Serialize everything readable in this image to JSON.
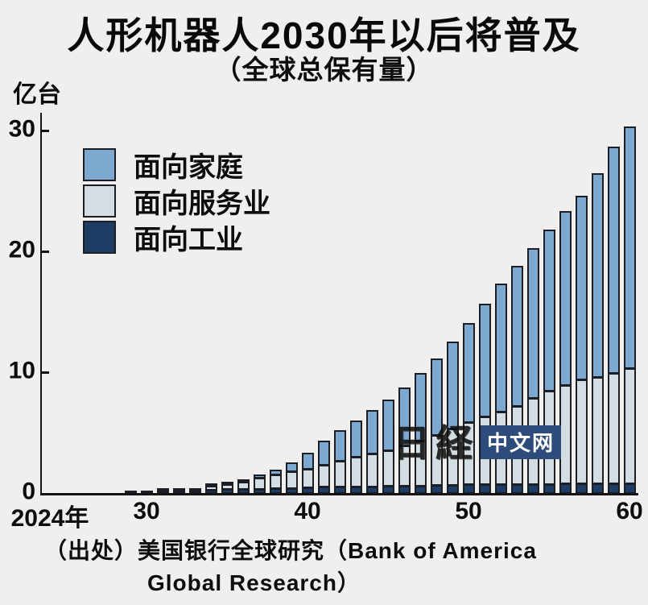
{
  "title": "人形机器人2030年以后将普及",
  "subtitle": "（全球总保有量）",
  "unit_label": "亿台",
  "watermark": {
    "brand": "日経",
    "badge": "中文网"
  },
  "source": {
    "line1": "（出处）美国银行全球研究（Bank of America",
    "line2": "Global Research）"
  },
  "colors": {
    "background": "#f0efed",
    "household": "#7dа9d0",
    "household_fix": "#7da9d0",
    "services": "#d4dde2",
    "industry": "#1f3c64",
    "bar_outline": "#1b1e24",
    "axis": "#141414",
    "watermark_badge": "#2d4c7c",
    "text": "#0d0d0d"
  },
  "legend_items": [
    {
      "label": "面向家庭",
      "color": "#7da9d0"
    },
    {
      "label": "面向服务业",
      "color": "#d4dde2"
    },
    {
      "label": "面向工业",
      "color": "#1f3c64"
    }
  ],
  "chart_data": {
    "type": "bar",
    "stacked": true,
    "title": "人形机器人2030年以后将普及",
    "subtitle": "（全球总保有量）",
    "ylabel": "亿台",
    "ylim": [
      0,
      31.5
    ],
    "y_ticks": [
      0,
      10,
      20,
      30
    ],
    "grid": false,
    "legend_position": "upper-left",
    "years": [
      2024,
      2025,
      2026,
      2027,
      2028,
      2029,
      2030,
      2031,
      2032,
      2033,
      2034,
      2035,
      2036,
      2037,
      2038,
      2039,
      2040,
      2041,
      2042,
      2043,
      2044,
      2045,
      2046,
      2047,
      2048,
      2049,
      2050,
      2051,
      2052,
      2053,
      2054,
      2055,
      2056,
      2057,
      2058,
      2059,
      2060
    ],
    "x_tick_labels": [
      {
        "year": 2024,
        "label": "2024年"
      },
      {
        "year": 2030,
        "label": "30"
      },
      {
        "year": 2040,
        "label": "40"
      },
      {
        "year": 2050,
        "label": "50"
      },
      {
        "year": 2060,
        "label": "60"
      }
    ],
    "series": [
      {
        "name": "面向工业",
        "color": "#1f3c64",
        "values": [
          0.005,
          0.008,
          0.01,
          0.015,
          0.03,
          0.05,
          0.08,
          0.12,
          0.18,
          0.22,
          0.25,
          0.3,
          0.32,
          0.35,
          0.38,
          0.4,
          0.45,
          0.5,
          0.5,
          0.55,
          0.55,
          0.6,
          0.6,
          0.6,
          0.65,
          0.65,
          0.7,
          0.7,
          0.7,
          0.75,
          0.75,
          0.75,
          0.8,
          0.8,
          0.8,
          0.8,
          0.8
        ]
      },
      {
        "name": "面向服务业",
        "color": "#d4dde2",
        "values": [
          0,
          0,
          0,
          0.005,
          0.01,
          0.02,
          0.02,
          0.04,
          0.1,
          0.18,
          0.3,
          0.42,
          0.63,
          0.9,
          1.12,
          1.4,
          1.55,
          1.8,
          2.1,
          2.45,
          2.75,
          2.9,
          3.3,
          3.7,
          4.15,
          4.65,
          5.1,
          5.6,
          6.0,
          6.45,
          7.15,
          7.75,
          8.1,
          8.6,
          8.8,
          9.1,
          9.5
        ]
      },
      {
        "name": "面向家庭",
        "color": "#7da9d0",
        "values": [
          0,
          0,
          0,
          0,
          0,
          0,
          0,
          0,
          0,
          0,
          0.05,
          0.08,
          0.15,
          0.25,
          0.4,
          0.7,
          1.3,
          2.0,
          2.5,
          3.0,
          3.6,
          4.2,
          4.8,
          5.6,
          6.3,
          7.2,
          8.2,
          9.3,
          10.6,
          11.6,
          12.4,
          13.3,
          14.4,
          15.2,
          16.9,
          18.7,
          20.0
        ]
      }
    ],
    "totals": [
      0.005,
      0.008,
      0.01,
      0.02,
      0.04,
      0.07,
      0.1,
      0.16,
      0.28,
      0.4,
      0.6,
      0.8,
      1.1,
      1.5,
      1.9,
      2.5,
      3.3,
      4.3,
      5.1,
      6.0,
      6.9,
      7.7,
      8.7,
      9.9,
      11.1,
      12.5,
      14.0,
      15.6,
      17.3,
      18.8,
      20.3,
      21.8,
      23.3,
      24.6,
      26.5,
      28.6,
      30.3
    ]
  }
}
